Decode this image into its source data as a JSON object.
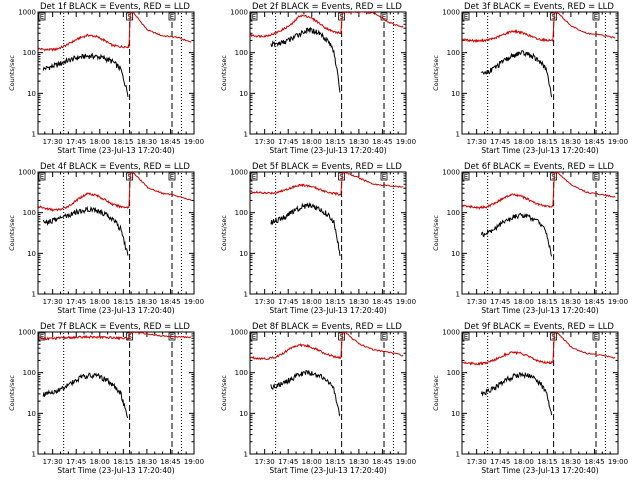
{
  "colors": {
    "events": "#000000",
    "lld": "#d40000"
  },
  "chart_data": {
    "type": "line",
    "layout": "3x3 grid of small multiples",
    "y_scale": "log",
    "ylim": [
      1,
      1000
    ],
    "y_ticks": [
      "1",
      "10",
      "100",
      "1000"
    ],
    "ylabel": "Counts/sec",
    "xlabel": "Start Time (23-Jul-13 17:20:40)",
    "x_ticks": [
      "17:30",
      "17:45",
      "18:00",
      "18:15",
      "18:30",
      "18:45",
      "19:00"
    ],
    "xlim": [
      "17:20:40",
      "19:00"
    ],
    "markers": {
      "dotted": [
        "17:37",
        "18:52"
      ],
      "dashed": [
        "18:19",
        "18:46"
      ],
      "flags": [
        "S",
        "E"
      ]
    },
    "panels": [
      {
        "title": "Det 1f BLACK = Events, RED = LLD",
        "events_start": "17:24",
        "series": [
          {
            "name": "Events",
            "values": [
              40,
              45,
              52,
              62,
              72,
              80,
              83,
              80,
              72,
              60,
              40,
              9
            ]
          },
          {
            "name": "LLD",
            "values": [
              125,
              118,
              120,
              140,
              180,
              230,
              270,
              250,
              200,
              150,
              140,
              140,
              1000,
              360,
              260,
              240,
              180
            ]
          }
        ]
      },
      {
        "title": "Det 2f BLACK = Events, RED = LLD",
        "events_start": "17:34",
        "series": [
          {
            "name": "Events",
            "values": [
              160,
              165,
              180,
              210,
              260,
              320,
              360,
              340,
              280,
              200,
              110,
              10
            ]
          },
          {
            "name": "LLD",
            "values": [
              270,
              255,
              260,
              300,
              380,
              500,
              820,
              780,
              600,
              420,
              330,
              300,
              1000,
              1000,
              950,
              550,
              420
            ]
          }
        ]
      },
      {
        "title": "Det 3f BLACK = Events, RED = LLD",
        "events_start": "17:33",
        "series": [
          {
            "name": "Events",
            "values": [
              30,
              34,
              42,
              55,
              70,
              86,
              98,
              95,
              82,
              62,
              40,
              8
            ]
          },
          {
            "name": "LLD",
            "values": [
              210,
              200,
              195,
              205,
              230,
              280,
              340,
              320,
              270,
              220,
              205,
              200,
              1000,
              450,
              300,
              270,
              230
            ]
          }
        ]
      },
      {
        "title": "Det 4f BLACK = Events, RED = LLD",
        "events_start": "17:24",
        "series": [
          {
            "name": "Events",
            "values": [
              58,
              62,
              72,
              85,
              100,
              115,
              120,
              112,
              95,
              70,
              40,
              8
            ]
          },
          {
            "name": "LLD",
            "values": [
              140,
              125,
              115,
              125,
              160,
              230,
              300,
              270,
              210,
              160,
              140,
              135,
              1000,
              420,
              300,
              260,
              200
            ]
          }
        ]
      },
      {
        "title": "Det 5f BLACK = Events, RED = LLD",
        "events_start": "17:34",
        "series": [
          {
            "name": "Events",
            "values": [
              60,
              66,
              78,
              95,
              118,
              140,
              150,
              140,
              118,
              90,
              60,
              9
            ]
          },
          {
            "name": "LLD",
            "values": [
              330,
              310,
              300,
              310,
              350,
              420,
              480,
              460,
              400,
              340,
              300,
              280,
              1000,
              700,
              500,
              460,
              420
            ]
          }
        ]
      },
      {
        "title": "Det 6f BLACK = Events, RED = LLD",
        "events_start": "17:33",
        "series": [
          {
            "name": "Events",
            "values": [
              28,
              32,
              40,
              52,
              66,
              80,
              86,
              82,
              70,
              55,
              35,
              8
            ]
          },
          {
            "name": "LLD",
            "values": [
              150,
              140,
              132,
              140,
              175,
              230,
              280,
              260,
              210,
              165,
              145,
              140,
              1000,
              480,
              320,
              280,
              240
            ]
          }
        ]
      },
      {
        "title": "Det 7f BLACK = Events, RED = LLD",
        "events_start": "17:24",
        "series": [
          {
            "name": "Events",
            "values": [
              30,
              32,
              38,
              48,
              62,
              78,
              88,
              84,
              70,
              52,
              32,
              7
            ]
          },
          {
            "name": "LLD",
            "values": [
              720,
              690,
              700,
              720,
              730,
              740,
              760,
              750,
              740,
              730,
              710,
              700,
              1000,
              900,
              800,
              760,
              740
            ]
          }
        ]
      },
      {
        "title": "Det 8f BLACK = Events, RED = LLD",
        "events_start": "17:34",
        "series": [
          {
            "name": "Events",
            "values": [
              45,
              48,
              56,
              68,
              82,
              95,
              100,
              92,
              78,
              60,
              38,
              8
            ]
          },
          {
            "name": "LLD",
            "values": [
              240,
              225,
              220,
              240,
              300,
              420,
              480,
              450,
              380,
              300,
              250,
              230,
              1000,
              500,
              360,
              320,
              260
            ]
          }
        ]
      },
      {
        "title": "Det 9f BLACK = Events, RED = LLD",
        "events_start": "17:33",
        "series": [
          {
            "name": "Events",
            "values": [
              30,
              34,
              42,
              55,
              68,
              82,
              92,
              88,
              76,
              58,
              36,
              8
            ]
          },
          {
            "name": "LLD",
            "values": [
              180,
              170,
              165,
              175,
              210,
              270,
              320,
              300,
              250,
              200,
              180,
              175,
              1000,
              420,
              300,
              270,
              230
            ]
          }
        ]
      }
    ]
  }
}
